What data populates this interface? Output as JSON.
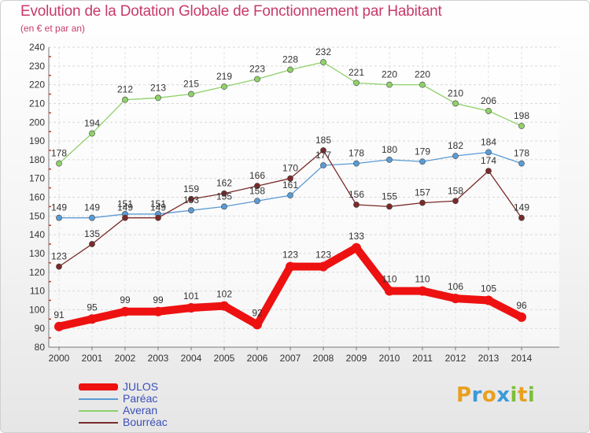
{
  "title": "Evolution de la Dotation Globale de Fonctionnement par Habitant",
  "subtitle": "(en € et par an)",
  "brand": {
    "letters": [
      "P",
      "r",
      "o",
      "x",
      "i",
      "t",
      "i"
    ],
    "colors": [
      "#e8a020",
      "#3a9ad9",
      "#e8a020",
      "#3a9ad9",
      "#7cbf3a",
      "#e8a020",
      "#7cbf3a"
    ]
  },
  "chart_data": {
    "type": "line",
    "x": [
      "2000",
      "2001",
      "2002",
      "2003",
      "2004",
      "2005",
      "2006",
      "2007",
      "2008",
      "2009",
      "2010",
      "2011",
      "2012",
      "2013",
      "2014"
    ],
    "ylim": [
      80,
      240
    ],
    "yticks": [
      80,
      90,
      100,
      110,
      120,
      130,
      140,
      150,
      160,
      170,
      180,
      190,
      200,
      210,
      220,
      230,
      240
    ],
    "grid": true,
    "legend_position": "bottom-left",
    "series": [
      {
        "name": "JULOS",
        "color": "#ee1111",
        "values": [
          91,
          95,
          99,
          99,
          101,
          102,
          92,
          123,
          123,
          133,
          110,
          110,
          106,
          105,
          96
        ]
      },
      {
        "name": "Paréac",
        "color": "#5b9bd5",
        "values": [
          149,
          149,
          151,
          151,
          153,
          155,
          158,
          161,
          177,
          178,
          180,
          179,
          182,
          184,
          178
        ]
      },
      {
        "name": "Averan",
        "color": "#8fd16a",
        "values": [
          178,
          194,
          212,
          213,
          215,
          219,
          223,
          228,
          232,
          221,
          220,
          220,
          210,
          206,
          198
        ]
      },
      {
        "name": "Bourréac",
        "color": "#7a2a2a",
        "values": [
          123,
          135,
          149,
          149,
          159,
          162,
          166,
          170,
          185,
          156,
          155,
          157,
          158,
          174,
          149
        ]
      }
    ]
  }
}
